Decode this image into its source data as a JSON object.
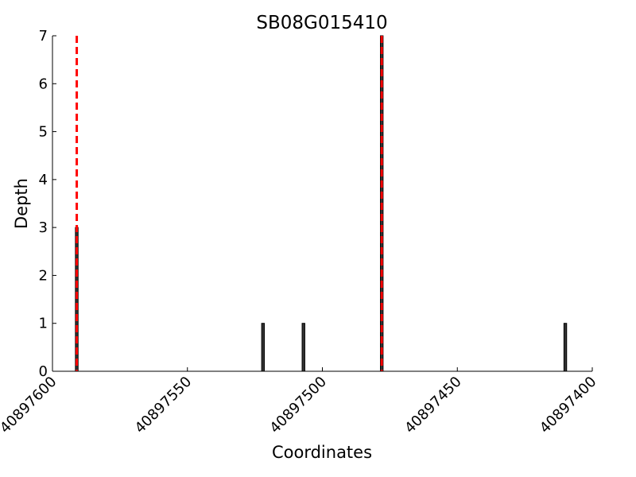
{
  "chart_data": {
    "type": "bar",
    "title": "SB08G015410",
    "x_label": "Coordinates",
    "y_label": "Depth",
    "x": [
      40897591,
      40897522,
      40897507,
      40897478,
      40897410
    ],
    "values": [
      3,
      1,
      1,
      7,
      1
    ],
    "color": "#333333",
    "xlim": [
      40897600,
      40897400
    ],
    "xticks": [
      40897600,
      40897550,
      40897500,
      40897450,
      40897400
    ],
    "ylim": [
      0,
      7
    ],
    "yticks": [
      0,
      1,
      2,
      3,
      4,
      5,
      6,
      7
    ],
    "vlines": [
      40897591,
      40897478
    ],
    "vline_color": "#ff0000"
  }
}
